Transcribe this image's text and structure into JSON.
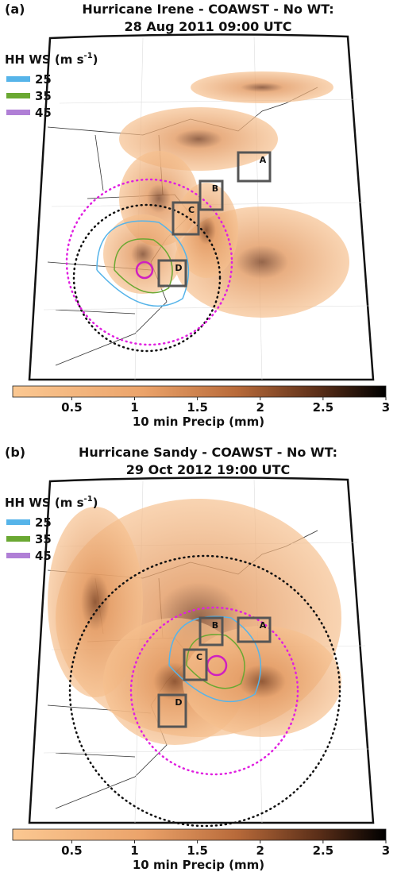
{
  "panels": [
    {
      "label": "(a)",
      "title": [
        "Hurricane Irene - COAWST - No WT:",
        "28 Aug 2011 09:00 UTC"
      ],
      "legend": {
        "title": [
          "HH WS (m s",
          "-1",
          ")"
        ],
        "items": [
          {
            "label": "25",
            "color": "#56b4e9"
          },
          {
            "label": "35",
            "color": "#6aa832"
          },
          {
            "label": "45",
            "color": "#b07fd6"
          }
        ]
      },
      "boxes": [
        "A",
        "B",
        "C",
        "D"
      ],
      "colorbar": {
        "lim": [
          0.03,
          3
        ],
        "ticks": [
          0.5,
          1,
          1.5,
          2,
          2.5,
          3
        ],
        "label": "10 min Precip (mm)"
      }
    },
    {
      "label": "(b)",
      "title": [
        "Hurricane Sandy - COAWST - No WT:",
        "29 Oct 2012 19:00 UTC"
      ],
      "legend": {
        "title": [
          "HH WS (m s",
          "-1",
          ")"
        ],
        "items": [
          {
            "label": "25",
            "color": "#56b4e9"
          },
          {
            "label": "35",
            "color": "#6aa832"
          },
          {
            "label": "45",
            "color": "#b07fd6"
          }
        ]
      },
      "boxes": [
        "A",
        "B",
        "C",
        "D"
      ],
      "colorbar": {
        "lim": [
          0.03,
          3
        ],
        "ticks": [
          0.5,
          1,
          1.5,
          2,
          2.5,
          3
        ],
        "label": "10 min Precip (mm)"
      }
    }
  ]
}
